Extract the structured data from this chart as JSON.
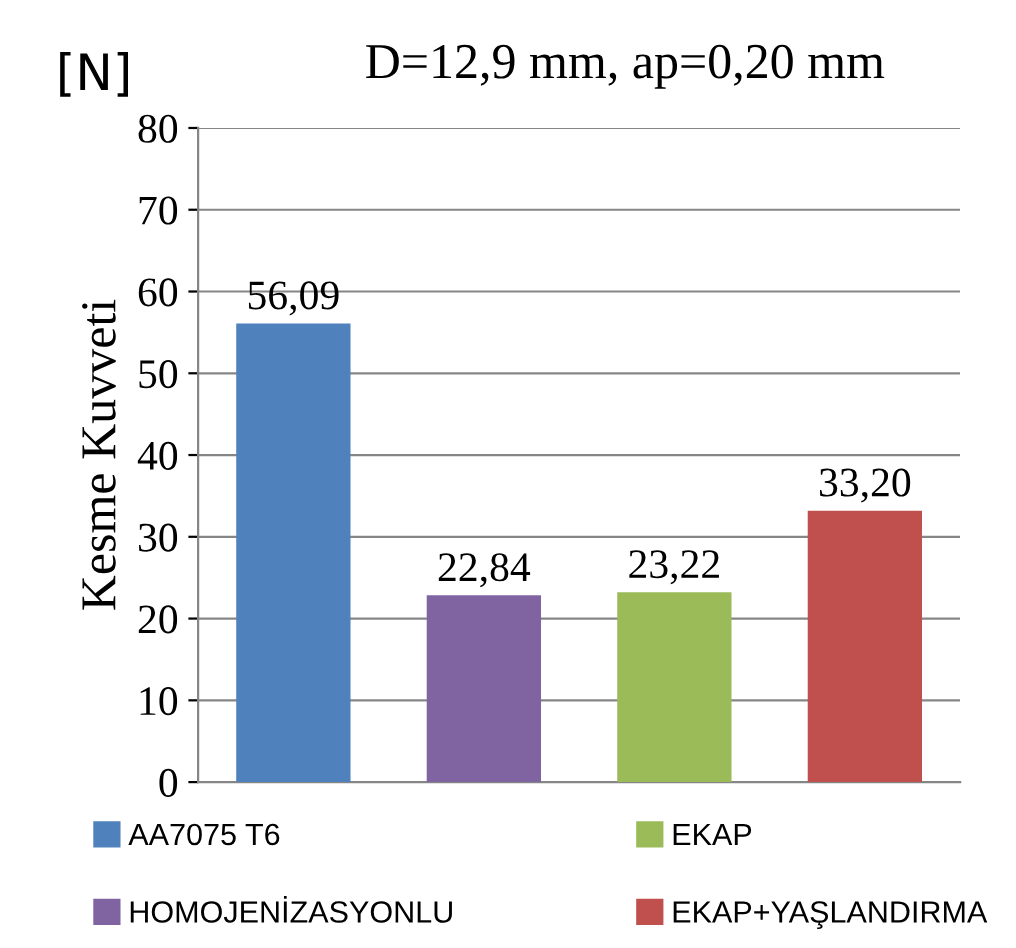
{
  "chart_data": {
    "type": "bar",
    "title": "D=12,9 mm, ap=0,20 mm",
    "ylabel": "Kesme Kuvveti",
    "annotations": [
      "[N]"
    ],
    "categories": [
      null,
      null,
      null,
      null
    ],
    "series": [
      {
        "name": "AA7075 T6",
        "color": "#4f81bd",
        "values": [
          56.09,
          null,
          null,
          null
        ],
        "value_labels": [
          "56,09",
          null,
          null,
          null
        ]
      },
      {
        "name": "HOMOJENİZASYONLU",
        "color": "#8064a2",
        "values": [
          null,
          22.84,
          null,
          null
        ],
        "value_labels": [
          null,
          "22,84",
          null,
          null
        ]
      },
      {
        "name": "EKAP",
        "color": "#9bbb59",
        "values": [
          null,
          null,
          23.22,
          null
        ],
        "value_labels": [
          null,
          null,
          "23,22",
          null
        ]
      },
      {
        "name": "EKAP+YAŞLANDIRMA",
        "color": "#c0504d",
        "values": [
          null,
          null,
          null,
          33.2
        ],
        "value_labels": [
          null,
          null,
          null,
          "33,20"
        ]
      }
    ],
    "ylim": [
      0,
      80
    ],
    "yticks": [
      0,
      10,
      20,
      30,
      40,
      50,
      60,
      70,
      80
    ],
    "grid": "y",
    "legend": "bottom"
  }
}
